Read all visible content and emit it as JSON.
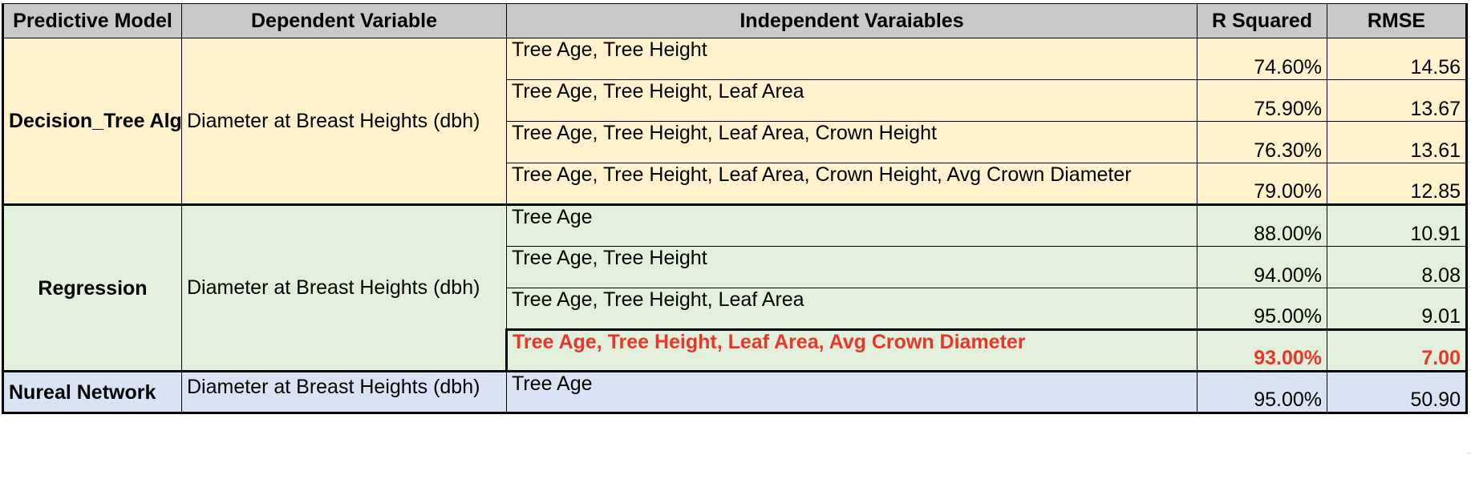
{
  "table": {
    "headers": [
      "Predictive Model",
      "Dependent Variable",
      "Independent Varaiables",
      "R Squared",
      "RMSE"
    ],
    "groups": [
      {
        "model": "Decision_Tree Algorism",
        "dependent": "Diameter at Breast Heights (dbh)",
        "rows": [
          {
            "vars": "Tree Age, Tree Height",
            "r2": "74.60%",
            "rmse": "14.56"
          },
          {
            "vars": "Tree Age, Tree Height, Leaf Area",
            "r2": "75.90%",
            "rmse": "13.67"
          },
          {
            "vars": "Tree Age, Tree Height, Leaf Area, Crown Height",
            "r2": "76.30%",
            "rmse": "13.61"
          },
          {
            "vars": "Tree Age, Tree Height, Leaf Area, Crown Height, Avg Crown Diameter",
            "r2": "79.00%",
            "rmse": "12.85"
          }
        ]
      },
      {
        "model": "Regression",
        "dependent": "Diameter at Breast Heights (dbh)",
        "rows": [
          {
            "vars": "Tree Age",
            "r2": "88.00%",
            "rmse": "10.91"
          },
          {
            "vars": "Tree Age, Tree Height",
            "r2": "94.00%",
            "rmse": "8.08"
          },
          {
            "vars": "Tree Age, Tree Height, Leaf Area",
            "r2": "95.00%",
            "rmse": "9.01"
          },
          {
            "vars": "Tree Age, Tree Height, Leaf Area, Avg Crown Diameter",
            "r2": "93.00%",
            "rmse": "7.00",
            "highlighted": true
          }
        ]
      },
      {
        "model": "Nureal Network",
        "dependent": "Diameter at Breast Heights (dbh)",
        "rows": [
          {
            "vars": "Tree Age",
            "r2": "95.00%",
            "rmse": "50.90"
          }
        ]
      }
    ]
  },
  "colors": {
    "header_bg": "#c9c9c9",
    "decision_tree_bg": "#fff2cc",
    "regression_bg": "#e2efda",
    "neural_network_bg": "#dae3f3",
    "highlight_text": "#e8362a"
  }
}
